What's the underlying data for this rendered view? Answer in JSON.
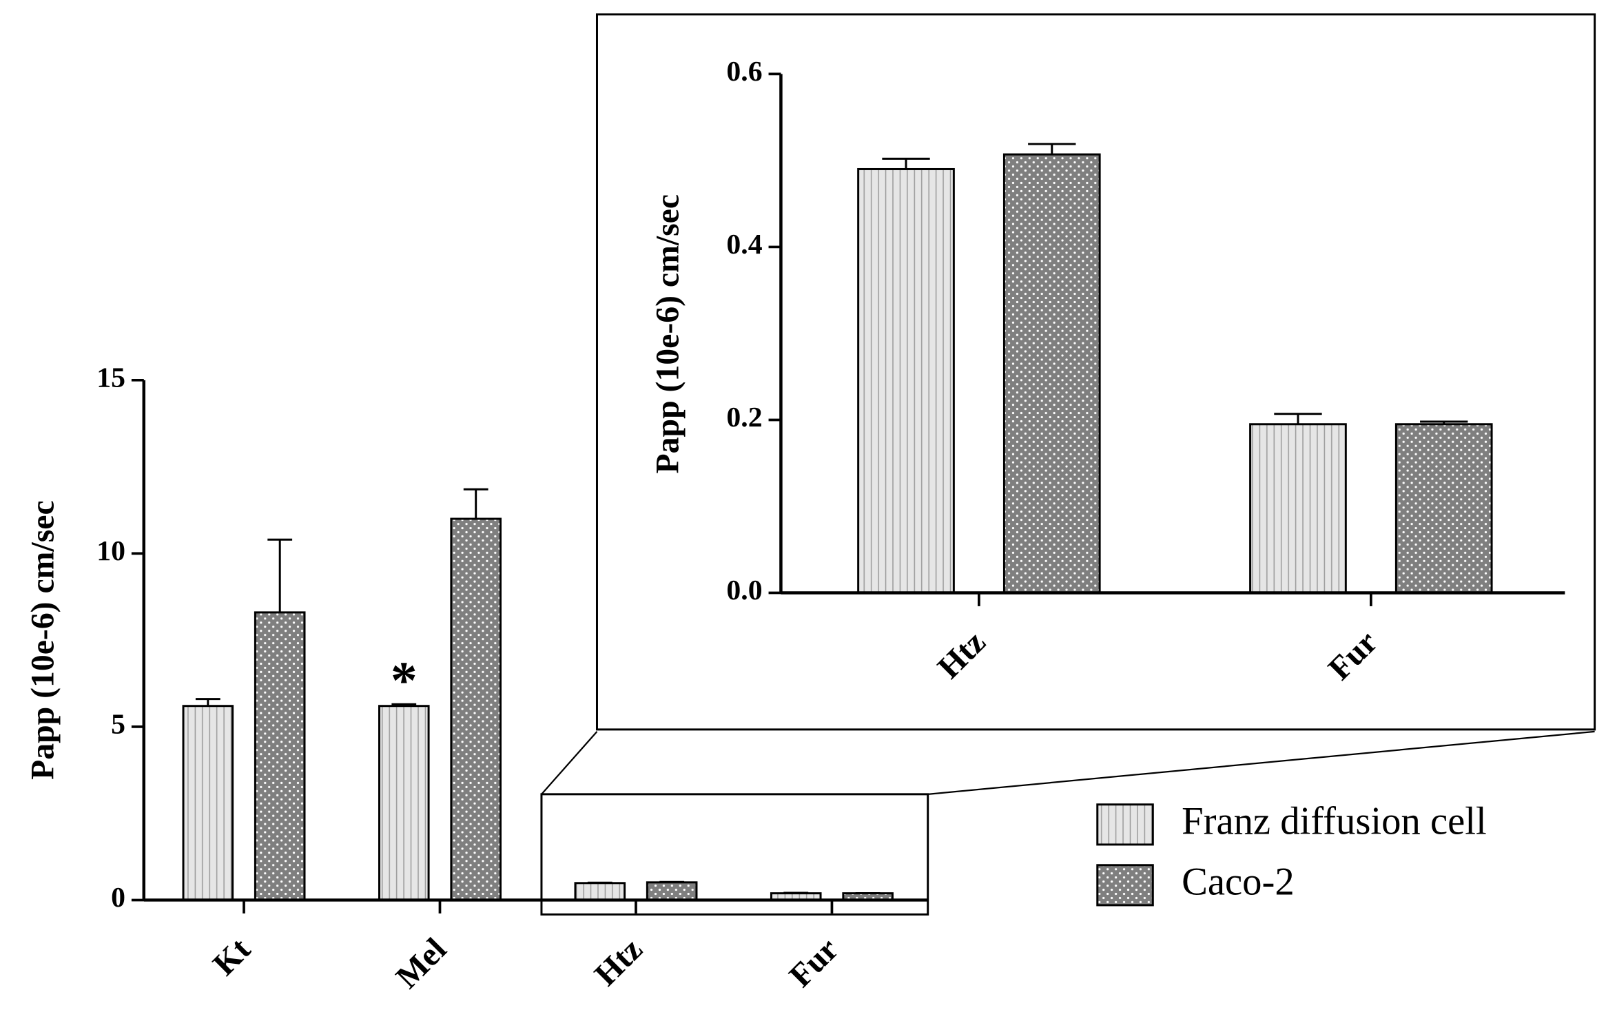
{
  "chart_data": [
    {
      "type": "bar",
      "y_label": "Papp (10e-6) cm/sec",
      "categories": [
        "Kt",
        "Mel",
        "Htz",
        "Fur"
      ],
      "series": [
        {
          "name": "Franz diffusion cell",
          "color": "#d9d9d9",
          "pattern": "stripes",
          "values": [
            5.6,
            5.6,
            0.49,
            0.195
          ],
          "errors": [
            0.2,
            0.05,
            0.01,
            0.012
          ]
        },
        {
          "name": "Caco-2",
          "color": "#7f7f7f",
          "pattern": "dots",
          "values": [
            8.3,
            11.0,
            0.51,
            0.195
          ],
          "errors": [
            2.1,
            0.85,
            0.012,
            0.003
          ]
        }
      ],
      "ylim": [
        0,
        15
      ],
      "yticks": [
        0,
        5,
        10,
        15
      ],
      "annotations": [
        {
          "text": "*"
        }
      ]
    },
    {
      "type": "bar",
      "y_label": "Papp (10e-6) cm/sec",
      "categories": [
        "Htz",
        "Fur"
      ],
      "series": [
        {
          "color": "#d9d9d9",
          "pattern": "stripes",
          "values": [
            0.49,
            0.195
          ],
          "errors": [
            0.012,
            0.012
          ]
        },
        {
          "color": "#7f7f7f",
          "pattern": "dots",
          "values": [
            0.507,
            0.195
          ],
          "errors": [
            0.012,
            0.003
          ]
        }
      ],
      "ylim": [
        0,
        0.6
      ],
      "yticks": [
        {
          "value": 0,
          "label": "0.0"
        },
        0.2,
        0.4,
        0.6
      ]
    }
  ]
}
